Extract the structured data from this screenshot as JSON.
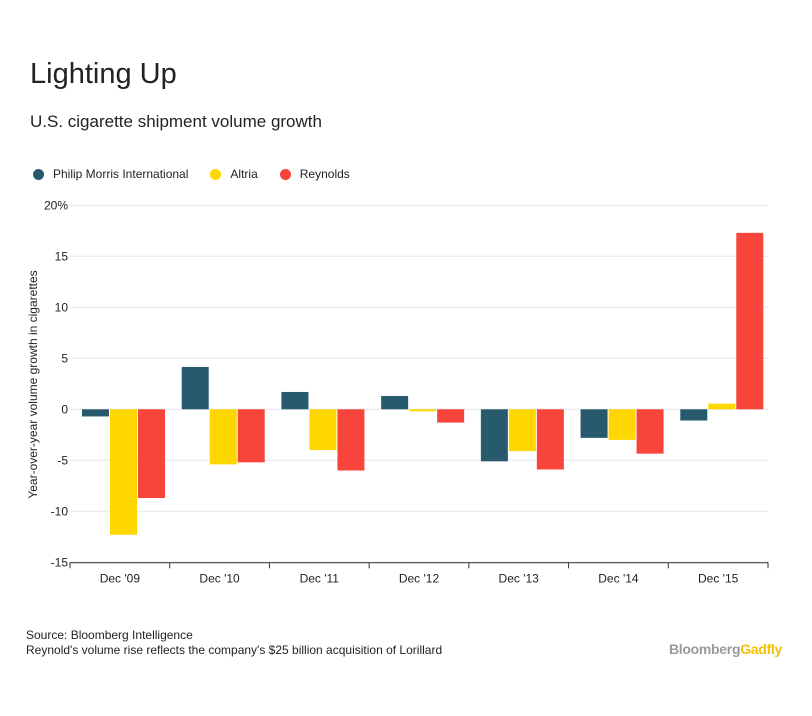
{
  "chart_data": {
    "type": "bar",
    "title": "Lighting Up",
    "subtitle": "U.S. cigarette shipment volume growth",
    "ylabel": "Year-over-year volume growth in cigarettes",
    "xlabel": "",
    "ylim": [
      -15,
      20
    ],
    "yticks": [
      20,
      15,
      10,
      5,
      0,
      -5,
      -10,
      -15
    ],
    "ytick_labels": [
      "20%",
      "15",
      "10",
      "5",
      "0",
      "-5",
      "-10",
      "-15"
    ],
    "grid": true,
    "legend_position": "top-left",
    "categories": [
      "Dec '09",
      "Dec '10",
      "Dec '11",
      "Dec '12",
      "Dec '13",
      "Dec '14",
      "Dec '15"
    ],
    "series": [
      {
        "name": "Philip Morris International",
        "color": "#265A6C",
        "values": [
          -0.7,
          4.15,
          1.7,
          1.3,
          -5.1,
          -2.8,
          -1.1
        ]
      },
      {
        "name": "Altria",
        "color": "#FFD700",
        "values": [
          -12.3,
          -5.4,
          -4.0,
          -0.2,
          -4.1,
          -3.0,
          0.55
        ]
      },
      {
        "name": "Reynolds",
        "color": "#F7453C",
        "values": [
          -8.7,
          -5.2,
          -6.0,
          -1.3,
          -5.9,
          -4.35,
          17.3
        ]
      }
    ]
  },
  "footer": {
    "source": "Source: Bloomberg Intelligence",
    "note": "Reynold's volume rise reflects the company's $25 billion acquisition of Lorillard"
  },
  "logo": {
    "part1": "Bloomberg",
    "part2": "Gadfly",
    "color1": "#9a9a9a",
    "color2": "#F2C200"
  }
}
